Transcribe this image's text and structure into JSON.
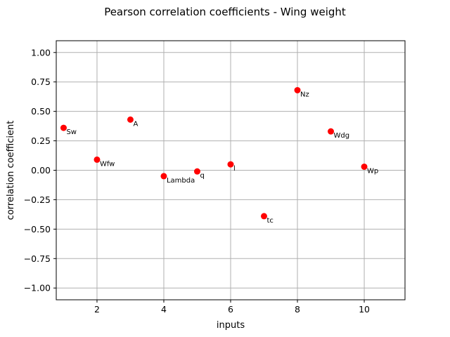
{
  "chart_data": {
    "type": "scatter",
    "title": "Pearson correlation coefficients - Wing weight",
    "xlabel": "inputs",
    "ylabel": "correlation coefficient",
    "xlim": [
      0.78,
      11.22
    ],
    "ylim": [
      -1.1,
      1.1
    ],
    "xticks": [
      2,
      4,
      6,
      8,
      10
    ],
    "xtick_labels": [
      "2",
      "4",
      "6",
      "8",
      "10"
    ],
    "yticks": [
      -1.0,
      -0.75,
      -0.5,
      -0.25,
      0.0,
      0.25,
      0.5,
      0.75,
      1.0
    ],
    "ytick_labels": [
      "−1.00",
      "−0.75",
      "−0.50",
      "−0.25",
      "0.00",
      "0.25",
      "0.50",
      "0.75",
      "1.00"
    ],
    "grid": true,
    "marker_color": "#ff0000",
    "points": [
      {
        "x": 1,
        "y": 0.36,
        "label": "Sw"
      },
      {
        "x": 2,
        "y": 0.09,
        "label": "Wfw"
      },
      {
        "x": 3,
        "y": 0.43,
        "label": "A"
      },
      {
        "x": 4,
        "y": -0.05,
        "label": "Lambda"
      },
      {
        "x": 5,
        "y": -0.01,
        "label": "q"
      },
      {
        "x": 6,
        "y": 0.05,
        "label": "l"
      },
      {
        "x": 7,
        "y": -0.39,
        "label": "tc"
      },
      {
        "x": 8,
        "y": 0.68,
        "label": "Nz"
      },
      {
        "x": 9,
        "y": 0.33,
        "label": "Wdg"
      },
      {
        "x": 10,
        "y": 0.03,
        "label": "Wp"
      }
    ]
  }
}
